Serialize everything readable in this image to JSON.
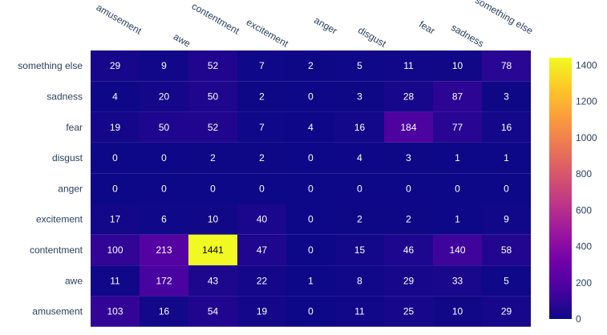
{
  "chart_data": {
    "type": "heatmap",
    "x_categories": [
      "amusement",
      "awe",
      "contentment",
      "excitement",
      "anger",
      "disgust",
      "fear",
      "sadness",
      "something else"
    ],
    "y_categories": [
      "something else",
      "sadness",
      "fear",
      "disgust",
      "anger",
      "excitement",
      "contentment",
      "awe",
      "amusement"
    ],
    "values": [
      [
        29,
        9,
        52,
        7,
        2,
        5,
        11,
        10,
        78
      ],
      [
        4,
        20,
        50,
        2,
        0,
        3,
        28,
        87,
        3
      ],
      [
        19,
        50,
        52,
        7,
        4,
        16,
        184,
        77,
        16
      ],
      [
        0,
        0,
        2,
        2,
        0,
        4,
        3,
        1,
        1
      ],
      [
        0,
        0,
        0,
        0,
        0,
        0,
        0,
        0,
        0
      ],
      [
        17,
        6,
        10,
        40,
        0,
        2,
        2,
        1,
        9
      ],
      [
        100,
        213,
        1441,
        47,
        0,
        15,
        46,
        140,
        58
      ],
      [
        11,
        172,
        43,
        22,
        1,
        8,
        29,
        33,
        5
      ],
      [
        103,
        16,
        54,
        19,
        0,
        11,
        25,
        10,
        29
      ]
    ],
    "colorscale": "plasma",
    "colorbar": {
      "min": 0,
      "max": 1441,
      "ticks": [
        0,
        200,
        400,
        600,
        800,
        1000,
        1200,
        1400
      ]
    },
    "x_axis_position": "top",
    "grid": false,
    "title": "",
    "xlabel": "",
    "ylabel": ""
  }
}
